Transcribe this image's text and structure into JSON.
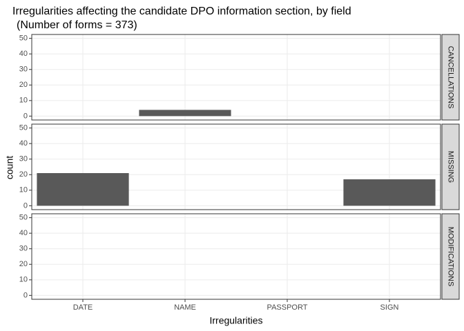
{
  "chart_data": {
    "type": "bar",
    "title": "Irregularities affecting the candidate DPO information section, by field",
    "subtitle": "(Number of forms = 373)",
    "x_label": "Irregularities",
    "y_label": "count",
    "categories": [
      "DATE",
      "NAME",
      "PASSPORT",
      "SIGN"
    ],
    "color": "#595959",
    "facets": [
      {
        "name": "CANCELLATIONS",
        "values": [
          0,
          4,
          0,
          0
        ]
      },
      {
        "name": "MISSING",
        "values": [
          21,
          0,
          0,
          17
        ]
      },
      {
        "name": "MODIFICATIONS",
        "values": [
          0,
          0,
          0,
          0
        ]
      }
    ],
    "ylim": [
      -2.5,
      52.5
    ],
    "yticks": [
      0,
      10,
      20,
      30,
      40,
      50
    ],
    "grid": true
  }
}
